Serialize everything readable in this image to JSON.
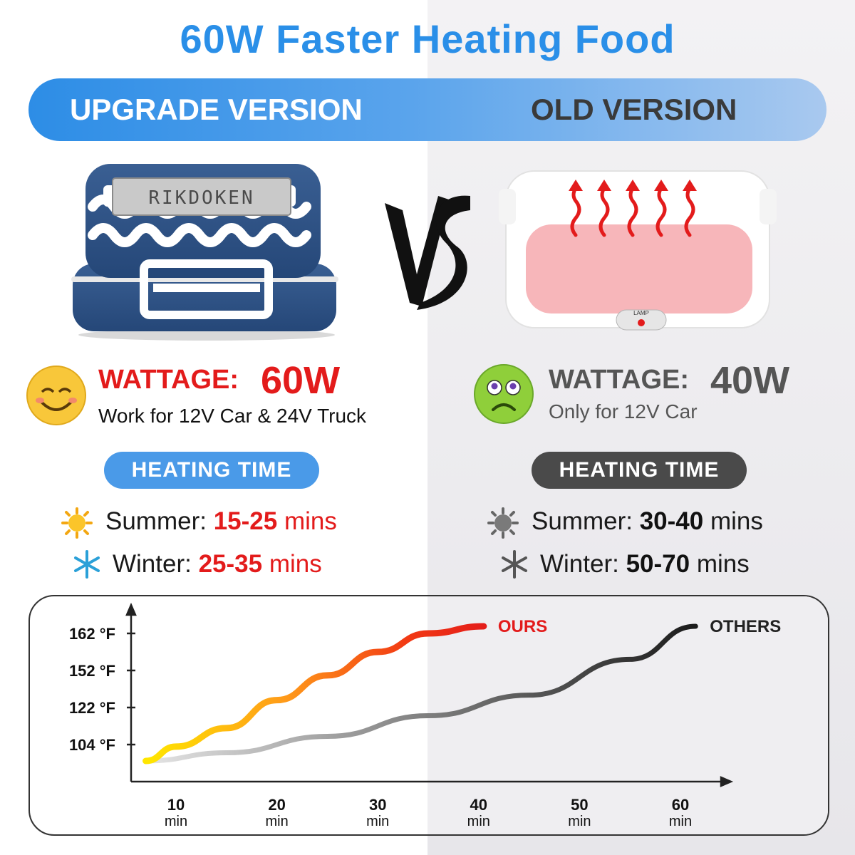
{
  "title": "60W Faster Heating Food",
  "versions": {
    "upgrade": "UPGRADE VERSION",
    "old": "OLD VERSION"
  },
  "products": {
    "upgrade_brand": "RIKDOKEN",
    "old_button": "LAMP",
    "vs": "VS"
  },
  "upgrade": {
    "wattage_label": "WATTAGE:",
    "wattage_value": "60W",
    "subtitle": "Work for 12V Car & 24V Truck",
    "heating_label": "HEATING TIME",
    "summer_label": "Summer:",
    "summer_value": "15-25",
    "winter_label": "Winter:",
    "winter_value": "25-35",
    "unit": "mins"
  },
  "old": {
    "wattage_label": "WATTAGE:",
    "wattage_value": "40W",
    "subtitle": "Only for 12V Car",
    "heating_label": "HEATING TIME",
    "summer_label": "Summer:",
    "summer_value": "30-40",
    "winter_label": "Winter:",
    "winter_value": "50-70",
    "unit": "mins"
  },
  "colors": {
    "accent_blue": "#2a8fe8",
    "highlight_red": "#e31b1b",
    "old_gray": "#4a4a4a",
    "pill_blue": "#4a9ae8"
  },
  "chart_data": {
    "type": "line",
    "y_tick_labels": [
      "162 °F",
      "152 °F",
      "122 °F",
      "104 °F"
    ],
    "x_tick_values": [
      "10",
      "20",
      "30",
      "40",
      "50",
      "60"
    ],
    "x_tick_unit": "min",
    "series": [
      {
        "name": "OURS",
        "color": "#e31b1b",
        "x": [
          7,
          10,
          15,
          20,
          25,
          30,
          35,
          40.5
        ],
        "y": [
          96,
          103,
          112,
          128,
          148,
          157,
          162,
          164
        ]
      },
      {
        "name": "OTHERS",
        "color": "#222222",
        "x": [
          7,
          15,
          25,
          35,
          45,
          55,
          61.5
        ],
        "y": [
          96,
          100,
          108,
          118,
          132,
          155,
          164
        ]
      }
    ],
    "grid": false,
    "legend": "inline-right"
  }
}
